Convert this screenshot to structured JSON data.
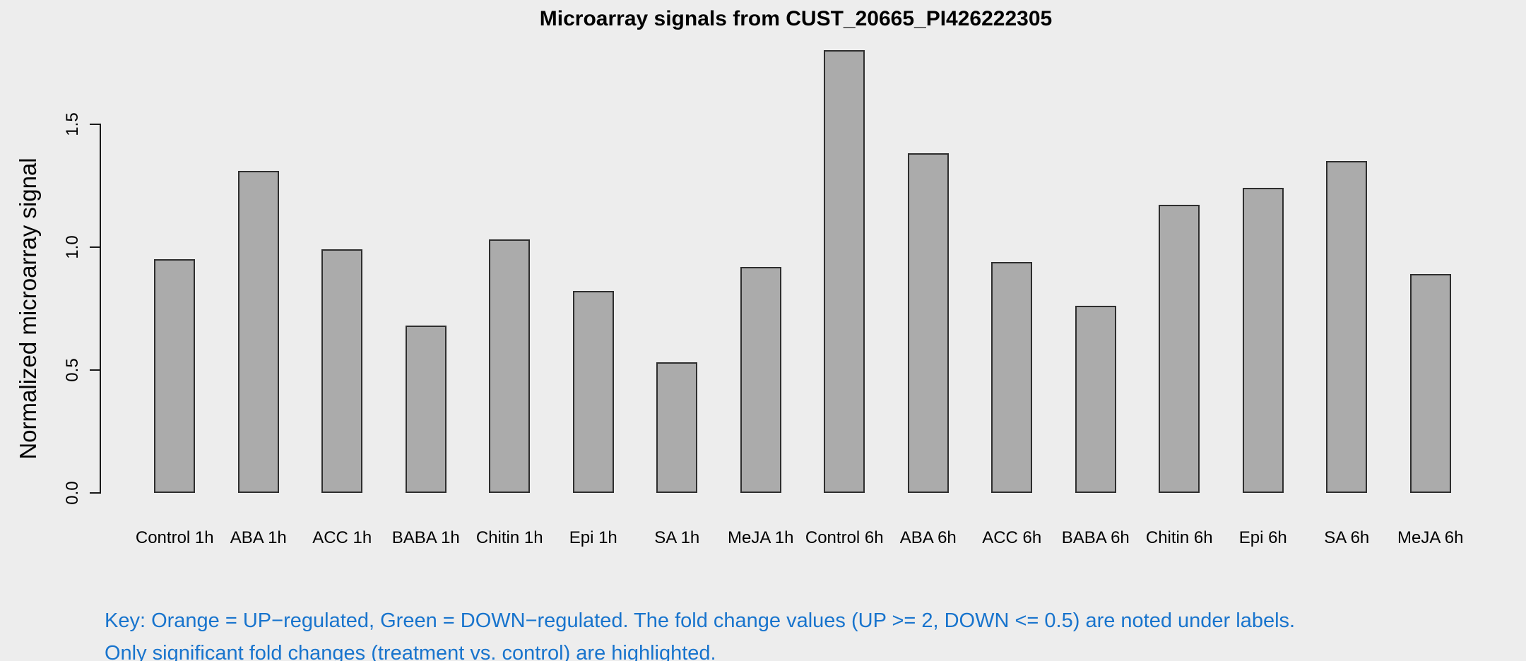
{
  "title": "Microarray signals from CUST_20665_PI426222305",
  "y_axis_title": "Normalized microarray signal",
  "key": {
    "line1": "Key: Orange = UP−regulated, Green = DOWN−regulated. The fold change values (UP >= 2, DOWN <= 0.5) are noted under labels.",
    "line2": "Only significant fold changes (treatment vs. control) are highlighted."
  },
  "colors": {
    "background": "#EDEDED",
    "text": "#000000",
    "axis": "#1A1A1A",
    "bar_fill": "#ABABAB",
    "bar_border": "#2E2E2E",
    "key_text": "#1874CD"
  },
  "chart_data": {
    "type": "bar",
    "title": "Microarray signals from CUST_20665_PI426222305",
    "xlabel": "",
    "ylabel": "Normalized microarray signal",
    "categories": [
      "Control 1h",
      "ABA 1h",
      "ACC 1h",
      "BABA 1h",
      "Chitin 1h",
      "Epi 1h",
      "SA 1h",
      "MeJA 1h",
      "Control 6h",
      "ABA 6h",
      "ACC 6h",
      "BABA 6h",
      "Chitin 6h",
      "Epi 6h",
      "SA 6h",
      "MeJA 6h"
    ],
    "values": [
      0.95,
      1.31,
      0.99,
      0.68,
      1.03,
      0.82,
      0.53,
      0.92,
      1.8,
      1.38,
      0.94,
      0.76,
      1.17,
      1.24,
      1.35,
      0.89
    ],
    "yticks": [
      0.0,
      0.5,
      1.0,
      1.5
    ],
    "ytick_labels": [
      "0.0",
      "0.5",
      "1.0",
      "1.5"
    ],
    "ylim": [
      0,
      1.8
    ],
    "grid": false,
    "legend_position": "none",
    "bar_color": "#ABABAB",
    "annotation": "Key: Orange = UP−regulated, Green = DOWN−regulated. The fold change values (UP >= 2, DOWN <= 0.5) are noted under labels. Only significant fold changes (treatment vs. control) are highlighted."
  }
}
